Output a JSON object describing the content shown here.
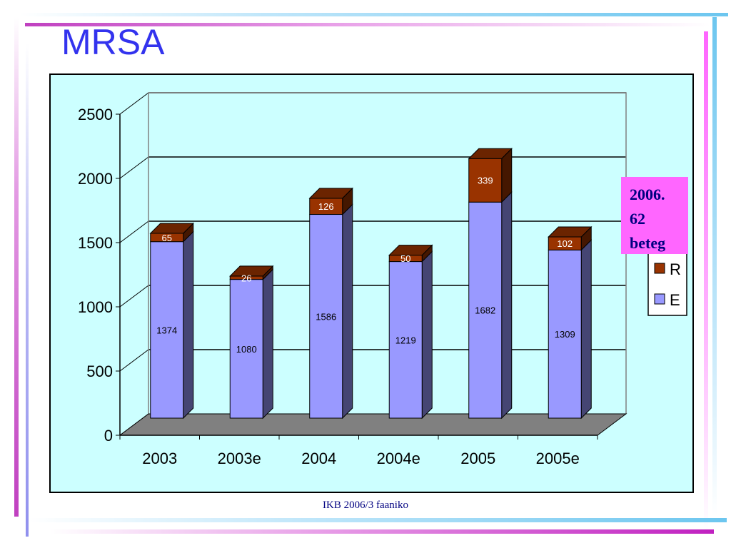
{
  "title": "MRSA",
  "footer": "IKB 2006/3 faaniko",
  "note": {
    "lines": [
      "2006.",
      "62",
      "beteg"
    ]
  },
  "colors": {
    "accent_title": "#3333ee",
    "chart_background": "#ccffff",
    "note_background": "#ff66ff",
    "series_E": "#9999ff",
    "series_R": "#993300",
    "floor": "#808080"
  },
  "chart_data": {
    "type": "bar",
    "stacked": true,
    "three_d": true,
    "categories": [
      "2003",
      "2003e",
      "2004",
      "2004e",
      "2005",
      "2005e"
    ],
    "series": [
      {
        "name": "E",
        "values": [
          1374,
          1080,
          1586,
          1219,
          1682,
          1309
        ]
      },
      {
        "name": "R",
        "values": [
          65,
          26,
          126,
          50,
          339,
          102
        ]
      }
    ],
    "y_ticks": [
      "0",
      "500",
      "1000",
      "1500",
      "2000",
      "2500"
    ],
    "ylim": [
      0,
      2500
    ],
    "grid": true,
    "legend": {
      "position": "right",
      "entries": [
        "R",
        "E"
      ]
    }
  }
}
